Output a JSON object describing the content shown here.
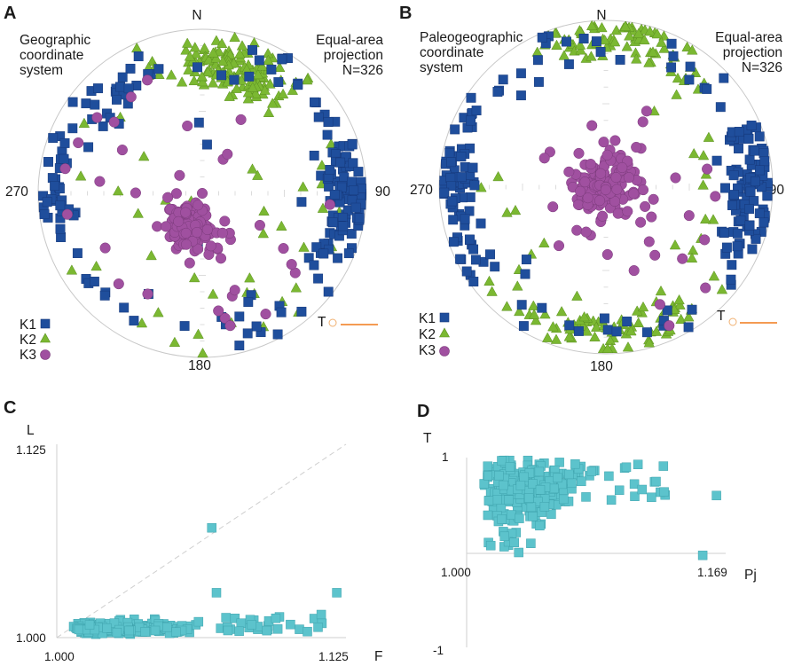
{
  "colors": {
    "k1": "#1f4e9c",
    "k2": "#7bb832",
    "k3": "#a050a0",
    "scatter": "#5cc3cc",
    "accent": "#f07a1a"
  },
  "chart_data": [
    {
      "panel": "A",
      "type": "scatter",
      "title": "Geographic coordinate system",
      "subtitle": "Equal-area projection",
      "title_lines": [
        "Geographic",
        "coordinate",
        "system"
      ],
      "projection_lines": [
        "Equal-area",
        "projection",
        "N=326"
      ],
      "n": 326,
      "axis_labels": {
        "north": "N",
        "east": "90",
        "south": "180",
        "west": "270"
      },
      "legend": [
        {
          "key": "k1",
          "label": "K1",
          "marker": "square"
        },
        {
          "key": "k2",
          "label": "K2",
          "marker": "triangle"
        },
        {
          "key": "k3",
          "label": "K3",
          "marker": "circle"
        }
      ],
      "scale_label": "T",
      "clusters": {
        "k1": {
          "description": "near-horizontal axes, dominant E and W",
          "mean_azimuths_deg": [
            90,
            270
          ]
        },
        "k2": {
          "description": "girdle concentrated N",
          "mean_azimuth_deg": 10
        },
        "k3": {
          "description": "near-vertical, slightly SW of centre",
          "mean_azimuth_deg": 200,
          "mean_radius_fraction": 0.2
        }
      }
    },
    {
      "panel": "B",
      "type": "scatter",
      "title": "Paleogeographic coordinate system",
      "subtitle": "Equal-area projection",
      "title_lines": [
        "Paleogeographic",
        "coordinate",
        "system"
      ],
      "projection_lines": [
        "Equal-area",
        "projection",
        "N=326"
      ],
      "n": 326,
      "axis_labels": {
        "north": "N",
        "east": "90",
        "south": "180",
        "west": "270"
      },
      "legend": [
        {
          "key": "k1",
          "label": "K1",
          "marker": "square"
        },
        {
          "key": "k2",
          "label": "K2",
          "marker": "triangle"
        },
        {
          "key": "k3",
          "label": "K3",
          "marker": "circle"
        }
      ],
      "scale_label": "T",
      "clusters": {
        "k1": {
          "description": "near-horizontal axes, dominant E and W",
          "mean_azimuths_deg": [
            90,
            270
          ]
        },
        "k2": {
          "description": "girdle concentrated N and S",
          "mean_azimuths_deg": [
            0,
            180
          ]
        },
        "k3": {
          "description": "near-vertical, centred",
          "mean_azimuth_deg": 0,
          "mean_radius_fraction": 0.05
        }
      }
    },
    {
      "panel": "C",
      "type": "scatter",
      "xlabel": "F",
      "ylabel": "L",
      "xlim": [
        1.0,
        1.125
      ],
      "ylim": [
        1.0,
        1.125
      ],
      "x_tick_labels": [
        "1.000",
        "1.125"
      ],
      "y_tick_labels": [
        "1.000",
        "1.125"
      ],
      "reference_line": "L = F",
      "n": 326,
      "highlighted_points": [
        {
          "F": 1.067,
          "L": 1.071
        },
        {
          "F": 1.069,
          "L": 1.029
        },
        {
          "F": 1.121,
          "L": 1.029
        }
      ],
      "bulk_range": {
        "F": [
          1.004,
          1.11
        ],
        "L": [
          1.0,
          1.016
        ]
      }
    },
    {
      "panel": "D",
      "type": "scatter",
      "xlabel": "Pj",
      "ylabel": "T",
      "xlim": [
        1.0,
        1.169
      ],
      "ylim": [
        -1,
        1
      ],
      "x_tick_labels": [
        "1.000",
        "1.169"
      ],
      "y_tick_labels": [
        "1",
        "-1"
      ],
      "n": 326,
      "highlighted_points": [
        {
          "Pj": 1.163,
          "T": 0.6
        },
        {
          "Pj": 1.154,
          "T": -0.03
        },
        {
          "Pj": 1.034,
          "T": 0.0
        }
      ],
      "bulk_range": {
        "Pj": [
          1.01,
          1.13
        ],
        "T": [
          0.1,
          0.97
        ]
      }
    }
  ]
}
